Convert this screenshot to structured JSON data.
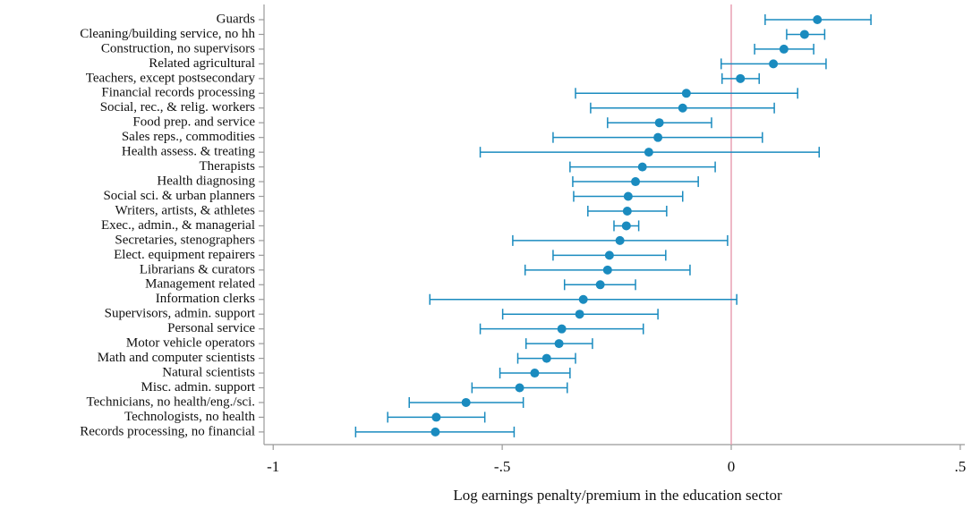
{
  "chart_data": {
    "type": "coefplot",
    "xlabel": "Log earnings penalty/premium in the education sector",
    "categories": [
      "Guards",
      "Cleaning/building service, no hh",
      "Construction, no supervisors",
      "Related agricultural",
      "Teachers, except postsecondary",
      "Financial records processing",
      "Social, rec., & relig. workers",
      "Food prep. and service",
      "Sales reps., commodities",
      "Health assess. & treating",
      "Therapists",
      "Health diagnosing",
      "Social sci. & urban planners",
      "Writers, artists, & athletes",
      "Exec., admin., & managerial",
      "Secretaries, stenographers",
      "Elect. equipment repairers",
      "Librarians & curators",
      "Management related",
      "Information clerks",
      "Supervisors, admin. support",
      "Personal service",
      "Motor vehicle operators",
      "Math and computer scientists",
      "Natural scientists",
      "Misc. admin. support",
      "Technicians, no health/eng./sci.",
      "Technologists, no health",
      "Records processing, no financial"
    ],
    "values": [
      0.188,
      0.16,
      0.115,
      0.092,
      0.02,
      -0.098,
      -0.106,
      -0.157,
      -0.16,
      -0.18,
      -0.194,
      -0.209,
      -0.225,
      -0.227,
      -0.229,
      -0.243,
      -0.266,
      -0.27,
      -0.286,
      -0.323,
      -0.331,
      -0.37,
      -0.376,
      -0.403,
      -0.429,
      -0.462,
      -0.579,
      -0.644,
      -0.646
    ],
    "lower": [
      0.074,
      0.121,
      0.051,
      -0.022,
      -0.02,
      -0.34,
      -0.307,
      -0.27,
      -0.389,
      -0.548,
      -0.352,
      -0.346,
      -0.344,
      -0.313,
      -0.256,
      -0.477,
      -0.389,
      -0.45,
      -0.364,
      -0.658,
      -0.499,
      -0.548,
      -0.448,
      -0.466,
      -0.505,
      -0.566,
      -0.703,
      -0.75,
      -0.82
    ],
    "upper": [
      0.305,
      0.204,
      0.18,
      0.207,
      0.061,
      0.145,
      0.094,
      -0.043,
      0.068,
      0.192,
      -0.035,
      -0.072,
      -0.106,
      -0.141,
      -0.202,
      -0.008,
      -0.143,
      -0.09,
      -0.209,
      0.012,
      -0.16,
      -0.192,
      -0.303,
      -0.34,
      -0.352,
      -0.358,
      -0.454,
      -0.538,
      -0.474
    ],
    "color": "#1a8bbf",
    "xline": 0,
    "xline_color": "#e8a0b4",
    "xlim": [
      -1.02,
      0.51
    ],
    "xticks": [
      -1,
      {
        "value": -0.5,
        "label": "-.5"
      },
      0,
      {
        "value": 0.5,
        "label": ".5"
      }
    ]
  }
}
